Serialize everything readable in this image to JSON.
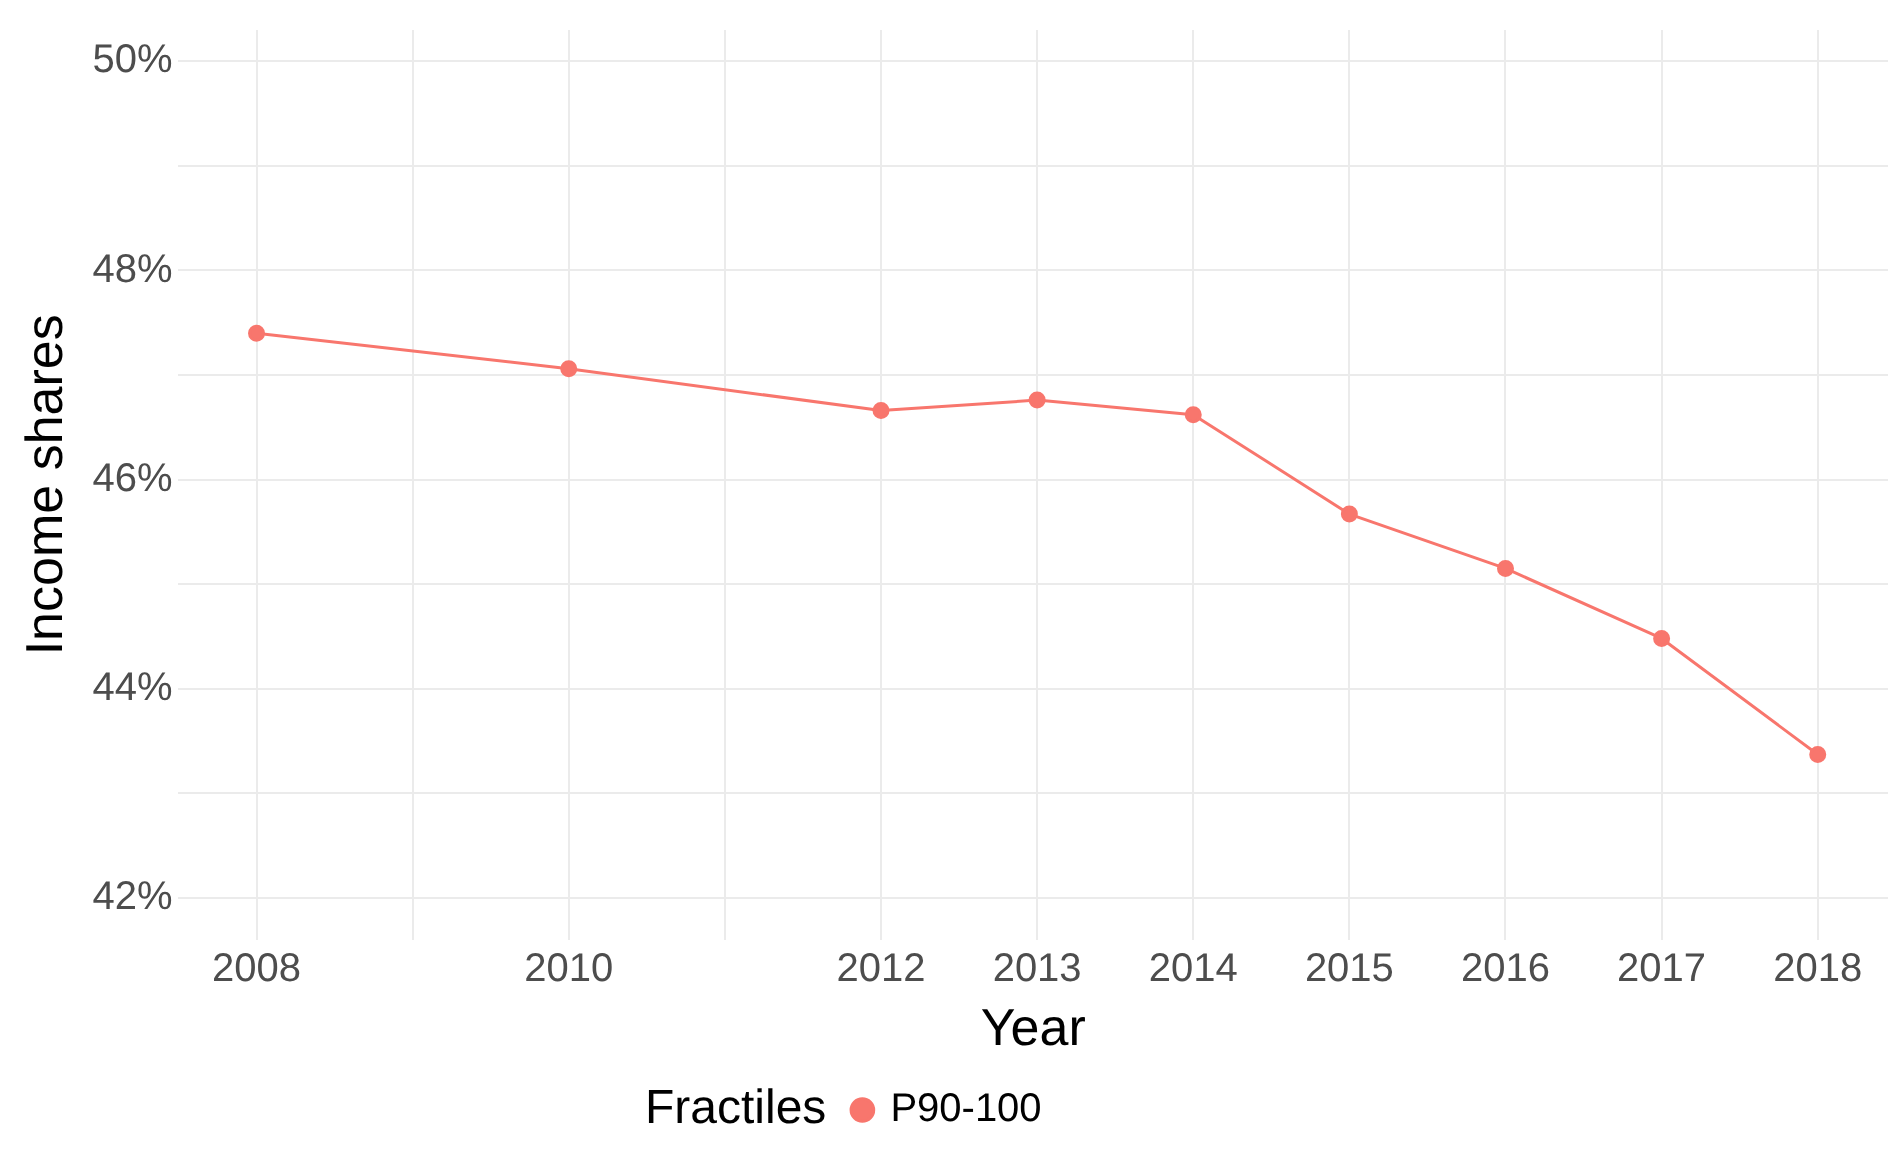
{
  "chart_data": {
    "type": "line",
    "xlabel": "Year",
    "ylabel": "Income shares",
    "legend_title": "Fractiles",
    "x": [
      2008,
      2010,
      2012,
      2013,
      2014,
      2015,
      2016,
      2017,
      2018
    ],
    "series": [
      {
        "name": "P90-100",
        "color": "#f8766d",
        "values": [
          47.4,
          47.06,
          46.66,
          46.76,
          46.62,
          45.67,
          45.15,
          44.48,
          43.37
        ]
      }
    ],
    "xlim": [
      2007.5,
      2018.45
    ],
    "xticks": [
      2008,
      {
        "value": 2009,
        "label": null
      },
      2010,
      {
        "value": 2011,
        "label": null
      },
      2012,
      2013,
      2014,
      2015,
      2016,
      2017,
      2018
    ],
    "ylim": [
      41.6,
      50.3
    ],
    "yticks": [
      {
        "value": 42,
        "label": "42%"
      },
      {
        "value": 43,
        "label": null
      },
      {
        "value": 44,
        "label": "44%"
      },
      {
        "value": 45,
        "label": null
      },
      {
        "value": 46,
        "label": "46%"
      },
      {
        "value": 47,
        "label": null
      },
      {
        "value": 48,
        "label": "48%"
      },
      {
        "value": 49,
        "label": null
      },
      {
        "value": 50,
        "label": "50%"
      }
    ],
    "grid": true,
    "legend": "bottom",
    "marker": "circle",
    "line_style": "solid"
  }
}
